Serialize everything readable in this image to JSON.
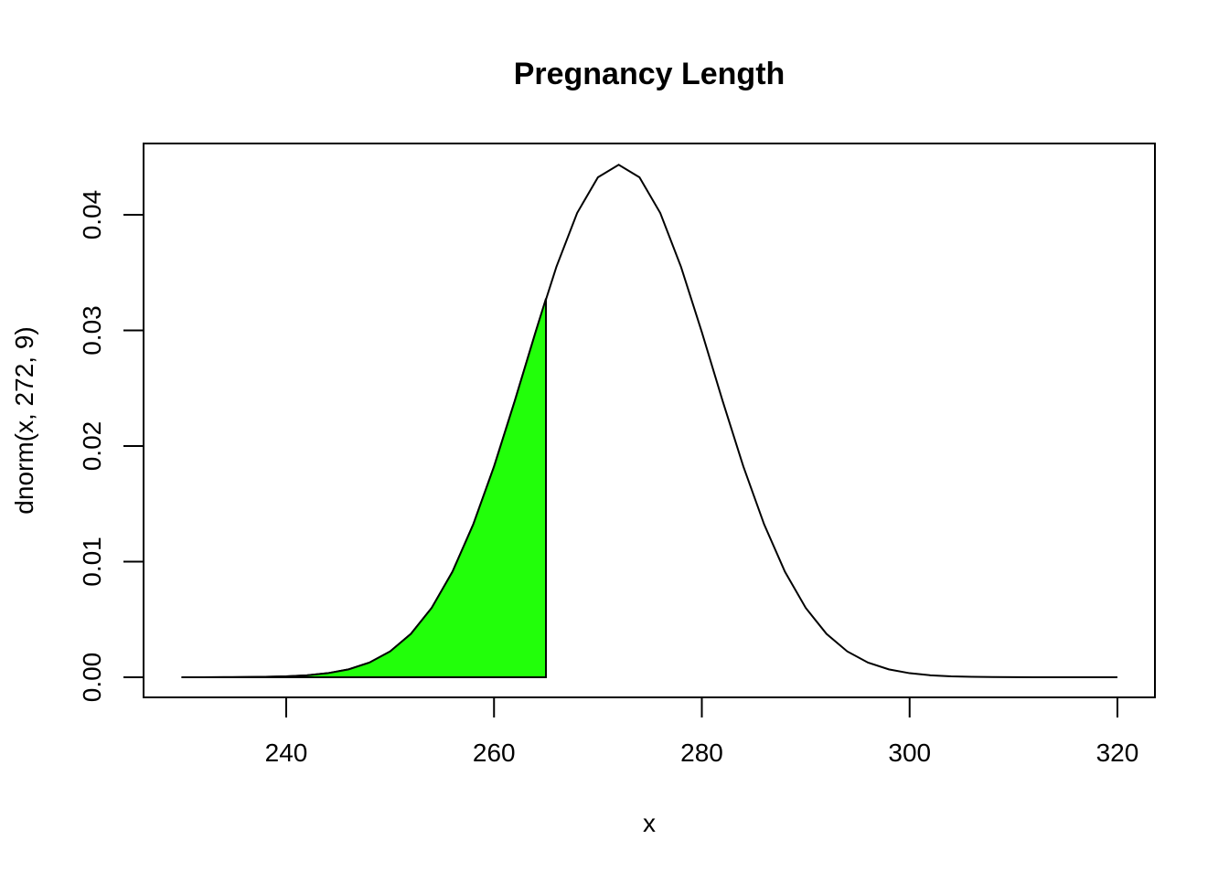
{
  "chart_data": {
    "type": "line",
    "title": "Pregnancy Length",
    "xlabel": "x",
    "ylabel": "dnorm(x, 272, 9)",
    "xlim": [
      226.27,
      323.61
    ],
    "ylim": [
      -0.00174,
      0.04617
    ],
    "xticks": [
      240,
      260,
      280,
      300,
      320
    ],
    "yticks": [
      {
        "value": 0,
        "label": "0.00"
      },
      {
        "value": 0.01,
        "label": "0.01"
      },
      {
        "value": 0.02,
        "label": "0.02"
      },
      {
        "value": 0.03,
        "label": "0.03"
      },
      {
        "value": 0.04,
        "label": "0.04"
      }
    ],
    "series": [
      {
        "color": "#000000",
        "x": [
          230,
          232,
          234,
          236,
          238,
          240,
          242,
          244,
          246,
          248,
          250,
          252,
          254,
          256,
          258,
          260,
          262,
          264,
          266,
          268,
          270,
          272,
          274,
          276,
          278,
          280,
          282,
          284,
          286,
          288,
          290,
          292,
          294,
          296,
          298,
          300,
          302,
          304,
          306,
          308,
          310,
          312,
          314,
          316,
          318,
          320
        ],
        "values": [
          8e-07,
          2.3e-06,
          6e-06,
          1.49e-05,
          3.52e-05,
          7.97e-05,
          0.000171,
          0.000351,
          0.000683,
          0.001266,
          0.002234,
          0.003753,
          0.005999,
          0.009128,
          0.013219,
          0.018224,
          0.023911,
          0.02986,
          0.035494,
          0.040161,
          0.043247,
          0.044328,
          0.043247,
          0.040161,
          0.035494,
          0.02986,
          0.023911,
          0.018224,
          0.013219,
          0.009128,
          0.005999,
          0.003753,
          0.002234,
          0.001266,
          0.000683,
          0.000351,
          0.000171,
          7.97e-05,
          3.52e-05,
          1.49e-05,
          6e-06,
          2.3e-06,
          8e-07,
          3e-07,
          1e-07,
          0
        ]
      },
      {
        "color": "#22ff0a",
        "fill": true,
        "x": [
          230,
          232,
          234,
          236,
          238,
          240,
          242,
          244,
          246,
          248,
          250,
          252,
          254,
          256,
          258,
          260,
          262,
          264,
          265
        ],
        "values": [
          8e-07,
          2.3e-06,
          6e-06,
          1.49e-05,
          3.52e-05,
          7.97e-05,
          0.000171,
          0.000351,
          0.000683,
          0.001266,
          0.002234,
          0.003753,
          0.005999,
          0.009128,
          0.013219,
          0.018224,
          0.023911,
          0.02986,
          0.032758
        ]
      }
    ]
  }
}
